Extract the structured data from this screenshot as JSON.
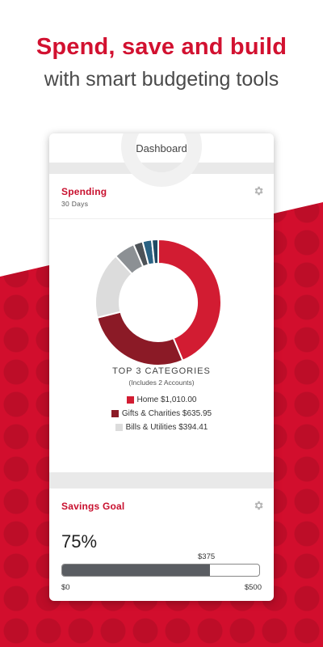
{
  "promo": {
    "headline": "Spend, save and build",
    "subheadline": "with smart budgeting tools"
  },
  "colors": {
    "brand_red": "#d20e2d",
    "home": "#d21c32",
    "gifts": "#8b1a26",
    "bills": "#dcdcdc",
    "gray_slice": "#8c9094",
    "dark_slice": "#4d5257",
    "blue_slice": "#2a6283",
    "navy_slice": "#1f4a63"
  },
  "app": {
    "title": "Dashboard"
  },
  "spending": {
    "title": "Spending",
    "period": "30 Days",
    "settings_icon": "gear-icon",
    "top_title": "TOP 3 CATEGORIES",
    "top_subtitle": "(Includes 2 Accounts)",
    "legend": [
      {
        "label": "Home $1,010.00",
        "color": "#d21c32"
      },
      {
        "label": "Gifts & Charities $635.95",
        "color": "#8b1a26"
      },
      {
        "label": "Bills & Utilities $394.41",
        "color": "#dcdcdc"
      }
    ]
  },
  "chart_data": {
    "type": "pie",
    "donut": true,
    "slices": [
      {
        "label": "Home",
        "value": 1010.0,
        "color": "#d21c32"
      },
      {
        "label": "Gifts & Charities",
        "value": 635.95,
        "color": "#8b1a26"
      },
      {
        "label": "Bills & Utilities",
        "value": 394.41,
        "color": "#dcdcdc"
      },
      {
        "label": "",
        "value": 126,
        "color": "#8c9094"
      },
      {
        "label": "",
        "value": 55,
        "color": "#4d5257"
      },
      {
        "label": "",
        "value": 55,
        "color": "#2a6283"
      },
      {
        "label": "",
        "value": 38,
        "color": "#1f4a63"
      }
    ]
  },
  "savings": {
    "title": "Savings Goal",
    "settings_icon": "gear-icon",
    "percent_label": "75%",
    "progress_fraction": 0.75,
    "current": "$375",
    "min": "$0",
    "max": "$500"
  }
}
